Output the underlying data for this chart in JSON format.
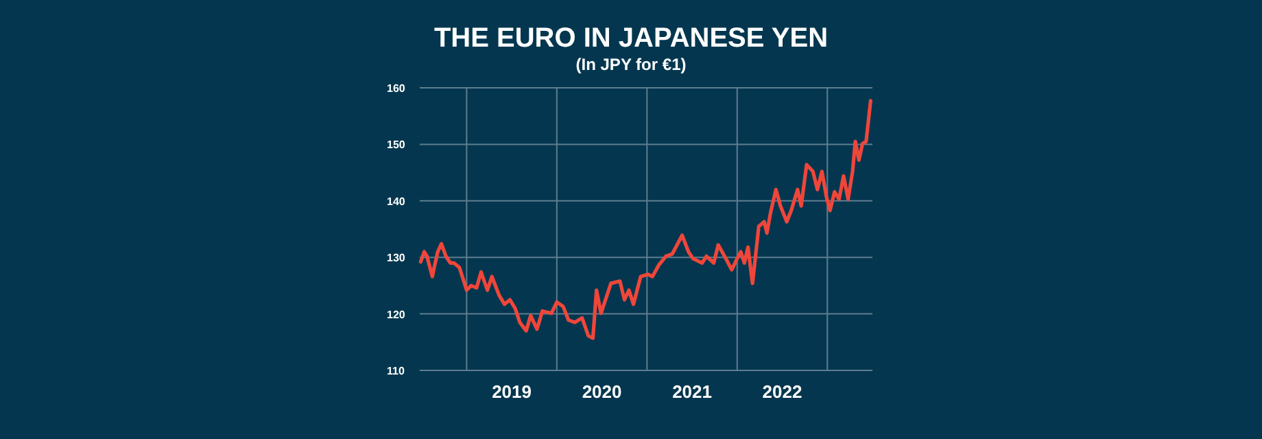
{
  "chart_data": {
    "type": "line",
    "title": "THE EURO IN JAPANESE YEN",
    "subtitle": "(In JPY for €1)",
    "xlim": [
      2018.48,
      2023.5
    ],
    "xticks": [
      {
        "value": 2019,
        "label": null
      },
      {
        "value": 2020,
        "label": null
      },
      {
        "value": 2021,
        "label": null
      },
      {
        "value": 2022,
        "label": null
      },
      {
        "value": 2023,
        "label": null
      },
      {
        "value": 2019.5,
        "label": "2019"
      },
      {
        "value": 2020.5,
        "label": "2020"
      },
      {
        "value": 2021.5,
        "label": "2021"
      },
      {
        "value": 2022.5,
        "label": "2022"
      }
    ],
    "ylim": [
      110,
      160
    ],
    "yticks": [
      110,
      120,
      130,
      140,
      150,
      160
    ],
    "grid": true,
    "series": [
      {
        "color": "#f0463a",
        "x": [
          2018.49,
          2018.53,
          2018.56,
          2018.62,
          2018.64,
          2018.68,
          2018.72,
          2018.77,
          2018.82,
          2018.86,
          2018.92,
          2019.0,
          2019.05,
          2019.11,
          2019.16,
          2019.23,
          2019.28,
          2019.36,
          2019.42,
          2019.48,
          2019.54,
          2019.59,
          2019.66,
          2019.71,
          2019.78,
          2019.84,
          2019.94,
          2020.0,
          2020.07,
          2020.13,
          2020.2,
          2020.28,
          2020.35,
          2020.4,
          2020.44,
          2020.49,
          2020.6,
          2020.7,
          2020.75,
          2020.8,
          2020.85,
          2020.93,
          2021.01,
          2021.06,
          2021.13,
          2021.21,
          2021.28,
          2021.39,
          2021.46,
          2021.51,
          2021.61,
          2021.66,
          2021.74,
          2021.79,
          2021.86,
          2021.94,
          2022.0,
          2022.04,
          2022.08,
          2022.12,
          2022.17,
          2022.24,
          2022.3,
          2022.33,
          2022.37,
          2022.43,
          2022.48,
          2022.55,
          2022.6,
          2022.67,
          2022.71,
          2022.77,
          2022.84,
          2022.89,
          2022.94,
          2022.99,
          2023.03,
          2023.08,
          2023.13,
          2023.18,
          2023.23,
          2023.28,
          2023.31,
          2023.35,
          2023.39,
          2023.43,
          2023.48
        ],
        "values": [
          129.2,
          131,
          130.2,
          126.6,
          128.2,
          131,
          132.4,
          130.2,
          129,
          129,
          128.2,
          124.2,
          125,
          124.6,
          127.4,
          124.2,
          126.6,
          123.3,
          121.7,
          122.5,
          120.9,
          118.5,
          117,
          119.7,
          117.3,
          120.5,
          120.1,
          122.1,
          121.3,
          118.9,
          118.5,
          119.3,
          116.1,
          115.7,
          124.2,
          120.1,
          125.4,
          125.8,
          122.5,
          124.2,
          121.7,
          126.6,
          127,
          126.6,
          128.6,
          130.2,
          130.6,
          133.9,
          131,
          129.8,
          129,
          130.2,
          129,
          132.2,
          130.2,
          127.8,
          129.8,
          131,
          129,
          131.8,
          125.4,
          135.5,
          136.3,
          134.3,
          137.9,
          142,
          139.1,
          136.3,
          138.3,
          142,
          139.1,
          146.4,
          145.2,
          142,
          145.2,
          140.7,
          138.3,
          141.6,
          140.3,
          144.4,
          140.3,
          145.2,
          150.5,
          147.2,
          150.1,
          150.5,
          157.7
        ]
      }
    ]
  }
}
